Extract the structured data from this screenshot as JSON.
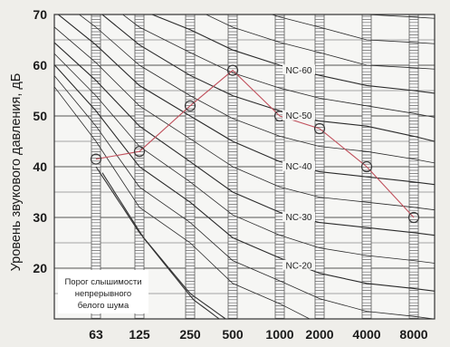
{
  "chart_data": {
    "type": "line",
    "ylabel": "Уровень звукового давления, дБ",
    "xlabel": "",
    "categories": [
      "63",
      "125",
      "250",
      "500",
      "1000",
      "2000",
      "4000",
      "8000"
    ],
    "yticks": [
      "20",
      "30",
      "40",
      "50",
      "60",
      "70"
    ],
    "ylim": [
      10,
      70
    ],
    "grid": true,
    "series": [
      {
        "values": [
          41.5,
          43,
          52,
          59,
          50,
          47.5,
          40,
          30
        ],
        "color": "#c0505c"
      }
    ],
    "nc_curves": [
      {
        "name": "NC-60",
        "label": "NC-60",
        "values": [
          77,
          71,
          67,
          63,
          60,
          58,
          56,
          55
        ]
      },
      {
        "name": "NC-50",
        "label": "NC-50",
        "values": [
          71,
          64,
          58,
          54,
          51,
          49,
          48,
          46
        ]
      },
      {
        "name": "NC-40",
        "label": "NC-40",
        "values": [
          64,
          56,
          50,
          45,
          41,
          39,
          38,
          37
        ]
      },
      {
        "name": "NC-30",
        "label": "NC-30",
        "values": [
          57,
          48,
          41,
          35,
          31,
          29,
          28,
          27
        ]
      },
      {
        "name": "NC-20",
        "label": "NC-20",
        "values": [
          51,
          40,
          33,
          26,
          22,
          19,
          17,
          16
        ]
      }
    ],
    "threshold": {
      "label_lines": [
        "Порог слышимости",
        "непрерывного",
        "белого шума"
      ],
      "values": [
        40,
        27,
        15,
        9
      ]
    }
  }
}
